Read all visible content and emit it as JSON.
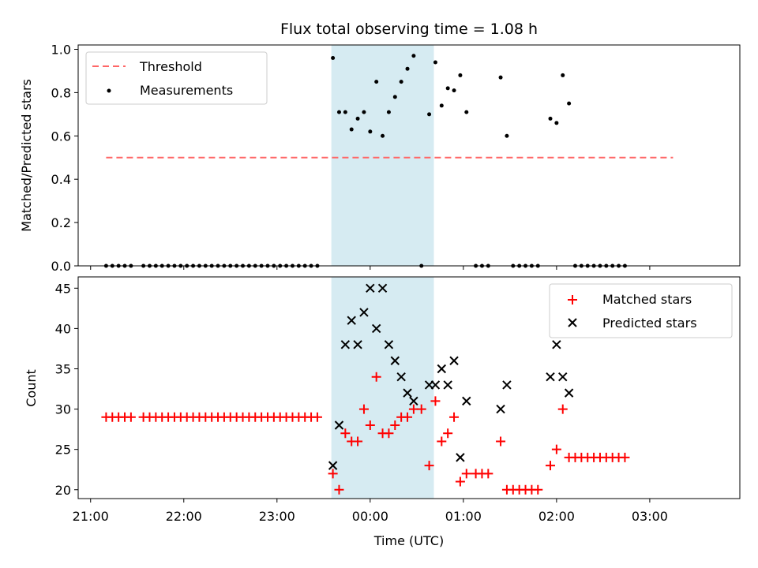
{
  "chart_data": {
    "type": "scatter",
    "title": "Flux total observing time = 1.08 h",
    "xlabel": "Time (UTC)",
    "x_ticks": [
      "21:00",
      "22:00",
      "23:00",
      "00:00",
      "01:00",
      "02:00",
      "03:00"
    ],
    "x_range": [
      "20:52",
      "03:58"
    ],
    "shaded_interval": [
      "23:35",
      "00:41"
    ],
    "colors": {
      "shade": "#add8e6",
      "threshold": "#ff6666",
      "measurements": "#000000",
      "matched": "#ff0000",
      "predicted": "#000000"
    },
    "panels": [
      {
        "ylabel": "Matched/Predicted stars",
        "ylim": [
          0,
          1.02
        ],
        "y_ticks": [
          "0.0",
          "0.2",
          "0.4",
          "0.6",
          "0.8",
          "1.0"
        ],
        "legend": {
          "position": "top-left",
          "entries": [
            "Threshold",
            "Measurements"
          ]
        },
        "threshold": {
          "name": "Threshold",
          "value": 0.5,
          "x_start": "21:10",
          "x_end": "03:15"
        },
        "series": [
          {
            "name": "Measurements",
            "marker": "dot",
            "points": [
              [
                "21:10",
                0
              ],
              [
                "21:14",
                0
              ],
              [
                "21:18",
                0
              ],
              [
                "21:22",
                0
              ],
              [
                "21:26",
                0
              ],
              [
                "21:34",
                0
              ],
              [
                "21:38",
                0
              ],
              [
                "21:42",
                0
              ],
              [
                "21:46",
                0
              ],
              [
                "21:50",
                0
              ],
              [
                "21:54",
                0
              ],
              [
                "21:58",
                0
              ],
              [
                "22:02",
                0
              ],
              [
                "22:06",
                0
              ],
              [
                "22:10",
                0
              ],
              [
                "22:14",
                0
              ],
              [
                "22:18",
                0
              ],
              [
                "22:22",
                0
              ],
              [
                "22:26",
                0
              ],
              [
                "22:30",
                0
              ],
              [
                "22:34",
                0
              ],
              [
                "22:38",
                0
              ],
              [
                "22:42",
                0
              ],
              [
                "22:46",
                0
              ],
              [
                "22:50",
                0
              ],
              [
                "22:54",
                0
              ],
              [
                "22:58",
                0
              ],
              [
                "23:02",
                0
              ],
              [
                "23:06",
                0
              ],
              [
                "23:10",
                0
              ],
              [
                "23:14",
                0
              ],
              [
                "23:18",
                0
              ],
              [
                "23:22",
                0
              ],
              [
                "23:26",
                0
              ],
              [
                "23:36",
                0.96
              ],
              [
                "23:40",
                0.71
              ],
              [
                "23:44",
                0.71
              ],
              [
                "23:48",
                0.63
              ],
              [
                "23:52",
                0.68
              ],
              [
                "23:56",
                0.71
              ],
              [
                "00:00",
                0.62
              ],
              [
                "00:04",
                0.85
              ],
              [
                "00:08",
                0.6
              ],
              [
                "00:12",
                0.71
              ],
              [
                "00:16",
                0.78
              ],
              [
                "00:20",
                0.85
              ],
              [
                "00:24",
                0.91
              ],
              [
                "00:28",
                0.97
              ],
              [
                "00:33",
                0
              ],
              [
                "00:38",
                0.7
              ],
              [
                "00:42",
                0.94
              ],
              [
                "00:46",
                0.74
              ],
              [
                "00:50",
                0.82
              ],
              [
                "00:54",
                0.81
              ],
              [
                "00:58",
                0.88
              ],
              [
                "01:02",
                0.71
              ],
              [
                "01:08",
                0
              ],
              [
                "01:12",
                0
              ],
              [
                "01:16",
                0
              ],
              [
                "01:24",
                0.87
              ],
              [
                "01:28",
                0.6
              ],
              [
                "01:32",
                0
              ],
              [
                "01:36",
                0
              ],
              [
                "01:40",
                0
              ],
              [
                "01:44",
                0
              ],
              [
                "01:48",
                0
              ],
              [
                "01:56",
                0.68
              ],
              [
                "02:00",
                0.66
              ],
              [
                "02:04",
                0.88
              ],
              [
                "02:08",
                0.75
              ],
              [
                "02:12",
                0
              ],
              [
                "02:16",
                0
              ],
              [
                "02:20",
                0
              ],
              [
                "02:24",
                0
              ],
              [
                "02:28",
                0
              ],
              [
                "02:32",
                0
              ],
              [
                "02:36",
                0
              ],
              [
                "02:40",
                0
              ],
              [
                "02:44",
                0
              ]
            ]
          }
        ]
      },
      {
        "ylabel": "Count",
        "ylim": [
          18.9,
          46.4
        ],
        "y_ticks": [
          "20",
          "25",
          "30",
          "35",
          "40",
          "45"
        ],
        "legend": {
          "position": "top-right",
          "entries": [
            "Matched stars",
            "Predicted stars"
          ]
        },
        "series": [
          {
            "name": "Matched stars",
            "marker": "plus",
            "points": [
              [
                "21:10",
                29
              ],
              [
                "21:14",
                29
              ],
              [
                "21:18",
                29
              ],
              [
                "21:22",
                29
              ],
              [
                "21:26",
                29
              ],
              [
                "21:34",
                29
              ],
              [
                "21:38",
                29
              ],
              [
                "21:42",
                29
              ],
              [
                "21:46",
                29
              ],
              [
                "21:50",
                29
              ],
              [
                "21:54",
                29
              ],
              [
                "21:58",
                29
              ],
              [
                "22:02",
                29
              ],
              [
                "22:06",
                29
              ],
              [
                "22:10",
                29
              ],
              [
                "22:14",
                29
              ],
              [
                "22:18",
                29
              ],
              [
                "22:22",
                29
              ],
              [
                "22:26",
                29
              ],
              [
                "22:30",
                29
              ],
              [
                "22:34",
                29
              ],
              [
                "22:38",
                29
              ],
              [
                "22:42",
                29
              ],
              [
                "22:46",
                29
              ],
              [
                "22:50",
                29
              ],
              [
                "22:54",
                29
              ],
              [
                "22:58",
                29
              ],
              [
                "23:02",
                29
              ],
              [
                "23:06",
                29
              ],
              [
                "23:10",
                29
              ],
              [
                "23:14",
                29
              ],
              [
                "23:18",
                29
              ],
              [
                "23:22",
                29
              ],
              [
                "23:26",
                29
              ],
              [
                "23:36",
                22
              ],
              [
                "23:40",
                20
              ],
              [
                "23:44",
                27
              ],
              [
                "23:48",
                26
              ],
              [
                "23:52",
                26
              ],
              [
                "23:56",
                30
              ],
              [
                "00:00",
                28
              ],
              [
                "00:04",
                34
              ],
              [
                "00:08",
                27
              ],
              [
                "00:12",
                27
              ],
              [
                "00:16",
                28
              ],
              [
                "00:20",
                29
              ],
              [
                "00:24",
                29
              ],
              [
                "00:28",
                30
              ],
              [
                "00:33",
                30
              ],
              [
                "00:38",
                23
              ],
              [
                "00:42",
                31
              ],
              [
                "00:46",
                26
              ],
              [
                "00:50",
                27
              ],
              [
                "00:54",
                29
              ],
              [
                "00:58",
                21
              ],
              [
                "01:02",
                22
              ],
              [
                "01:08",
                22
              ],
              [
                "01:12",
                22
              ],
              [
                "01:16",
                22
              ],
              [
                "01:24",
                26
              ],
              [
                "01:28",
                20
              ],
              [
                "01:32",
                20
              ],
              [
                "01:36",
                20
              ],
              [
                "01:40",
                20
              ],
              [
                "01:44",
                20
              ],
              [
                "01:48",
                20
              ],
              [
                "01:56",
                23
              ],
              [
                "02:00",
                25
              ],
              [
                "02:04",
                30
              ],
              [
                "02:08",
                24
              ],
              [
                "02:12",
                24
              ],
              [
                "02:16",
                24
              ],
              [
                "02:20",
                24
              ],
              [
                "02:24",
                24
              ],
              [
                "02:28",
                24
              ],
              [
                "02:32",
                24
              ],
              [
                "02:36",
                24
              ],
              [
                "02:40",
                24
              ],
              [
                "02:44",
                24
              ]
            ]
          },
          {
            "name": "Predicted stars",
            "marker": "x",
            "points": [
              [
                "23:36",
                23
              ],
              [
                "23:40",
                28
              ],
              [
                "23:44",
                38
              ],
              [
                "23:48",
                41
              ],
              [
                "23:52",
                38
              ],
              [
                "23:56",
                42
              ],
              [
                "00:00",
                45
              ],
              [
                "00:04",
                40
              ],
              [
                "00:08",
                45
              ],
              [
                "00:12",
                38
              ],
              [
                "00:16",
                36
              ],
              [
                "00:20",
                34
              ],
              [
                "00:24",
                32
              ],
              [
                "00:28",
                31
              ],
              [
                "00:38",
                33
              ],
              [
                "00:42",
                33
              ],
              [
                "00:46",
                35
              ],
              [
                "00:50",
                33
              ],
              [
                "00:54",
                36
              ],
              [
                "00:58",
                24
              ],
              [
                "01:02",
                31
              ],
              [
                "01:24",
                30
              ],
              [
                "01:28",
                33
              ],
              [
                "01:56",
                34
              ],
              [
                "02:00",
                38
              ],
              [
                "02:04",
                34
              ],
              [
                "02:08",
                32
              ]
            ]
          }
        ]
      }
    ]
  }
}
